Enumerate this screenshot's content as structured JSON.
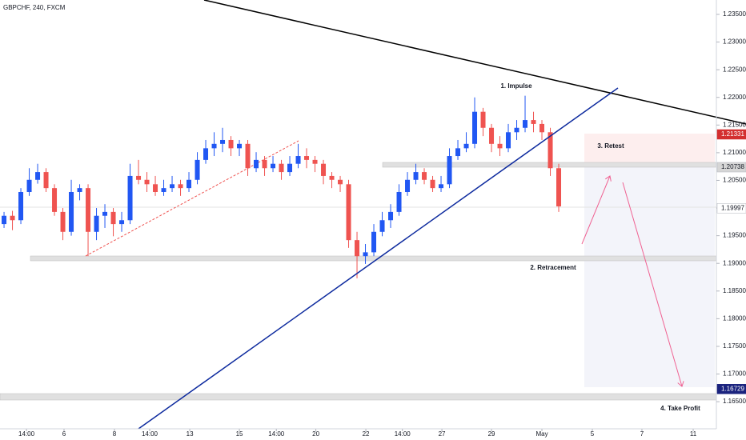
{
  "chart_data": {
    "type": "candlestick",
    "title": "GBPCHF, 240, FXCM",
    "up_color": "#2157f3",
    "down_color": "#ef5350",
    "ylim": [
      1.1601,
      1.2376
    ],
    "yticks": [
      {
        "value": 1.235,
        "label": "1.23500"
      },
      {
        "value": 1.23,
        "label": "1.23000"
      },
      {
        "value": 1.225,
        "label": "1.22500"
      },
      {
        "value": 1.22,
        "label": "1.22000"
      },
      {
        "value": 1.215,
        "label": "1.21500"
      },
      {
        "value": 1.21,
        "label": "1.21000"
      },
      {
        "value": 1.205,
        "label": "1.20500"
      },
      {
        "value": 1.2,
        "label": "1.20000"
      },
      {
        "value": 1.195,
        "label": "1.19500"
      },
      {
        "value": 1.19,
        "label": "1.19000"
      },
      {
        "value": 1.185,
        "label": "1.18500"
      },
      {
        "value": 1.18,
        "label": "1.18000"
      },
      {
        "value": 1.175,
        "label": "1.17500"
      },
      {
        "value": 1.17,
        "label": "1.17000"
      },
      {
        "value": 1.165,
        "label": "1.16500"
      }
    ],
    "xlim": [
      -0.48,
      84.76
    ],
    "xticks": [
      {
        "value": 2.67,
        "label": "14:00"
      },
      {
        "value": 7.14,
        "label": "6"
      },
      {
        "value": 13.14,
        "label": "8"
      },
      {
        "value": 17.33,
        "label": "14:00"
      },
      {
        "value": 22.1,
        "label": "13"
      },
      {
        "value": 28,
        "label": "15"
      },
      {
        "value": 32.4,
        "label": "14:00"
      },
      {
        "value": 37.1,
        "label": "20"
      },
      {
        "value": 43.05,
        "label": "22"
      },
      {
        "value": 47.4,
        "label": "14:00"
      },
      {
        "value": 52.1,
        "label": "27"
      },
      {
        "value": 58,
        "label": "29"
      },
      {
        "value": 64,
        "label": "May"
      },
      {
        "value": 70,
        "label": "5"
      },
      {
        "value": 75.9,
        "label": "7"
      },
      {
        "value": 82,
        "label": "11"
      }
    ],
    "candles": [
      [
        1.1971,
        1.1993,
        1.1964,
        1.1986
      ],
      [
        1.1986,
        1.1995,
        1.196,
        1.1978
      ],
      [
        1.1978,
        1.2036,
        1.1971,
        1.2029
      ],
      [
        1.2029,
        1.2072,
        1.2022,
        1.2051
      ],
      [
        1.2051,
        1.208,
        1.2044,
        1.2065
      ],
      [
        1.2065,
        1.2072,
        1.2029,
        1.2036
      ],
      [
        1.2036,
        1.2043,
        1.1986,
        1.1993
      ],
      [
        1.1993,
        1.2,
        1.1942,
        1.1957
      ],
      [
        1.1957,
        1.2051,
        1.195,
        1.2029
      ],
      [
        1.2029,
        1.2043,
        1.2014,
        1.2036
      ],
      [
        1.2036,
        1.2043,
        1.1913,
        1.1957
      ],
      [
        1.1957,
        1.2,
        1.1942,
        1.1986
      ],
      [
        1.1986,
        1.2007,
        1.1964,
        1.1993
      ],
      [
        1.1993,
        1.2,
        1.1949,
        1.1971
      ],
      [
        1.1971,
        1.1993,
        1.1957,
        1.1978
      ],
      [
        1.1978,
        1.208,
        1.1971,
        1.2058
      ],
      [
        1.2058,
        1.2087,
        1.2043,
        1.2051
      ],
      [
        1.2051,
        1.2065,
        1.2029,
        1.2043
      ],
      [
        1.2043,
        1.2058,
        1.2022,
        1.2029
      ],
      [
        1.2029,
        1.2051,
        1.2022,
        1.2036
      ],
      [
        1.2036,
        1.2058,
        1.2029,
        1.2043
      ],
      [
        1.2043,
        1.2051,
        1.2022,
        1.2036
      ],
      [
        1.2036,
        1.2065,
        1.2029,
        1.2051
      ],
      [
        1.2051,
        1.2101,
        1.2043,
        1.2087
      ],
      [
        1.2087,
        1.2123,
        1.208,
        1.2108
      ],
      [
        1.2108,
        1.2137,
        1.2094,
        1.2116
      ],
      [
        1.2116,
        1.2145,
        1.2101,
        1.2123
      ],
      [
        1.2123,
        1.213,
        1.2094,
        1.2108
      ],
      [
        1.2108,
        1.2123,
        1.2094,
        1.2116
      ],
      [
        1.2116,
        1.2123,
        1.2058,
        1.2072
      ],
      [
        1.2072,
        1.2101,
        1.2065,
        1.2087
      ],
      [
        1.2087,
        1.2094,
        1.2058,
        1.2072
      ],
      [
        1.2072,
        1.2094,
        1.2065,
        1.208
      ],
      [
        1.208,
        1.2087,
        1.2051,
        1.2065
      ],
      [
        1.2065,
        1.2094,
        1.2058,
        1.208
      ],
      [
        1.208,
        1.2116,
        1.2072,
        1.2094
      ],
      [
        1.2094,
        1.2108,
        1.2072,
        1.2087
      ],
      [
        1.2087,
        1.2094,
        1.2065,
        1.208
      ],
      [
        1.208,
        1.2087,
        1.2043,
        1.2058
      ],
      [
        1.2058,
        1.2065,
        1.2036,
        1.2051
      ],
      [
        1.2051,
        1.2058,
        1.2029,
        1.2043
      ],
      [
        1.2043,
        1.2051,
        1.1928,
        1.1942
      ],
      [
        1.1942,
        1.1957,
        1.1873,
        1.1913
      ],
      [
        1.1913,
        1.1935,
        1.1899,
        1.192
      ],
      [
        1.192,
        1.1971,
        1.1913,
        1.1957
      ],
      [
        1.1957,
        1.1993,
        1.1949,
        1.1978
      ],
      [
        1.1978,
        1.2007,
        1.1964,
        1.1993
      ],
      [
        1.1993,
        1.2043,
        1.1986,
        1.2029
      ],
      [
        1.2029,
        1.2065,
        1.2022,
        1.2051
      ],
      [
        1.2051,
        1.208,
        1.2043,
        1.2065
      ],
      [
        1.2065,
        1.2072,
        1.2043,
        1.2051
      ],
      [
        1.2051,
        1.2058,
        1.2029,
        1.2036
      ],
      [
        1.2036,
        1.2058,
        1.2029,
        1.2043
      ],
      [
        1.2043,
        1.2108,
        1.2036,
        1.2094
      ],
      [
        1.2094,
        1.2123,
        1.2087,
        1.2108
      ],
      [
        1.2108,
        1.2137,
        1.2101,
        1.2116
      ],
      [
        1.2116,
        1.22,
        1.2108,
        1.2174
      ],
      [
        1.2174,
        1.2181,
        1.213,
        1.2145
      ],
      [
        1.2145,
        1.2152,
        1.2101,
        1.2116
      ],
      [
        1.2116,
        1.213,
        1.2094,
        1.2108
      ],
      [
        1.2108,
        1.2152,
        1.2101,
        1.2137
      ],
      [
        1.2137,
        1.2159,
        1.2123,
        1.2145
      ],
      [
        1.2145,
        1.2203,
        1.2137,
        1.2159
      ],
      [
        1.2159,
        1.2174,
        1.2137,
        1.2152
      ],
      [
        1.2152,
        1.2159,
        1.2123,
        1.2137
      ],
      [
        1.2137,
        1.2145,
        1.2058,
        1.2072
      ],
      [
        1.2072,
        1.208,
        1.1993,
        1.2003
      ]
    ],
    "price_markers": [
      {
        "value": 1.21331,
        "color": "#d32f2f"
      },
      {
        "value": 1.20738,
        "color": "#d6d6d6"
      },
      {
        "value": 1.19997,
        "color": "#ffffff"
      },
      {
        "value": 1.16729,
        "color": "#1a237e"
      }
    ],
    "annotations": [
      "1. Impulse",
      "2. Retracement",
      "3. Retest",
      "4. Take Profit"
    ]
  }
}
